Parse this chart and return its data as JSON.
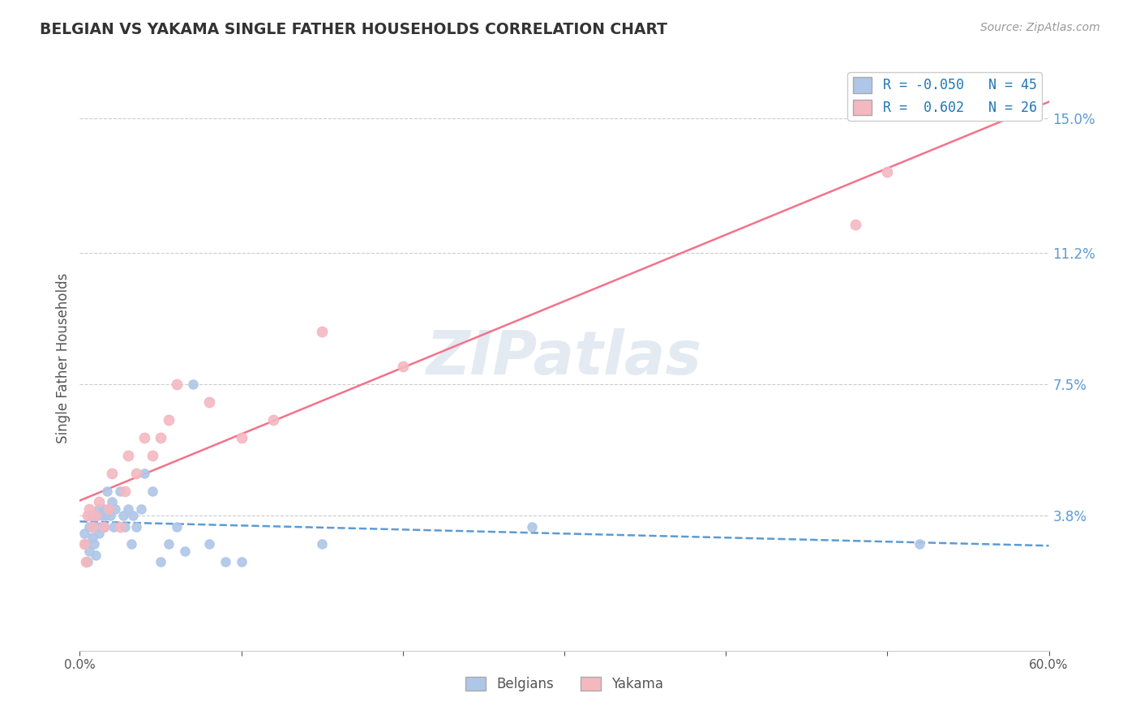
{
  "title": "BELGIAN VS YAKAMA SINGLE FATHER HOUSEHOLDS CORRELATION CHART",
  "source": "Source: ZipAtlas.com",
  "ylabel": "Single Father Households",
  "xlim": [
    0.0,
    0.6
  ],
  "ylim": [
    0.0,
    0.165
  ],
  "xticks": [
    0.0,
    0.1,
    0.2,
    0.3,
    0.4,
    0.5,
    0.6
  ],
  "xticklabels": [
    "0.0%",
    "",
    "",
    "",
    "",
    "",
    "60.0%"
  ],
  "ytick_vals": [
    0.038,
    0.075,
    0.112,
    0.15
  ],
  "ytick_labels": [
    "3.8%",
    "7.5%",
    "11.2%",
    "15.0%"
  ],
  "watermark": "ZIPatlas",
  "legend_r1": "R = -0.050",
  "legend_n1": "N = 45",
  "legend_r2": "R =  0.602",
  "legend_n2": "N = 26",
  "belgian_color": "#aec6e8",
  "yakama_color": "#f4b8c1",
  "belgian_line_color": "#5b9bd5",
  "yakama_line_color": "#f4728a",
  "grid_color": "#cccccc",
  "title_color": "#333333",
  "source_color": "#999999",
  "tick_color": "#555555",
  "legend_text_color": "#1f77b4",
  "belgians_x": [
    0.003,
    0.004,
    0.005,
    0.006,
    0.006,
    0.007,
    0.008,
    0.009,
    0.01,
    0.01,
    0.011,
    0.012,
    0.012,
    0.013,
    0.014,
    0.015,
    0.015,
    0.016,
    0.017,
    0.018,
    0.019,
    0.02,
    0.021,
    0.022,
    0.025,
    0.027,
    0.028,
    0.03,
    0.032,
    0.033,
    0.035,
    0.038,
    0.04,
    0.045,
    0.05,
    0.055,
    0.06,
    0.065,
    0.07,
    0.08,
    0.09,
    0.1,
    0.15,
    0.28,
    0.52
  ],
  "belgians_y": [
    0.033,
    0.03,
    0.025,
    0.028,
    0.035,
    0.038,
    0.032,
    0.03,
    0.027,
    0.035,
    0.038,
    0.04,
    0.033,
    0.035,
    0.038,
    0.04,
    0.035,
    0.038,
    0.045,
    0.04,
    0.038,
    0.042,
    0.035,
    0.04,
    0.045,
    0.038,
    0.035,
    0.04,
    0.03,
    0.038,
    0.035,
    0.04,
    0.05,
    0.045,
    0.025,
    0.03,
    0.035,
    0.028,
    0.075,
    0.03,
    0.025,
    0.025,
    0.03,
    0.035,
    0.03
  ],
  "yakama_x": [
    0.003,
    0.004,
    0.005,
    0.006,
    0.008,
    0.01,
    0.012,
    0.015,
    0.018,
    0.02,
    0.025,
    0.028,
    0.03,
    0.035,
    0.04,
    0.045,
    0.05,
    0.055,
    0.06,
    0.08,
    0.1,
    0.12,
    0.15,
    0.2,
    0.48,
    0.5
  ],
  "yakama_y": [
    0.03,
    0.025,
    0.038,
    0.04,
    0.035,
    0.038,
    0.042,
    0.035,
    0.04,
    0.05,
    0.035,
    0.045,
    0.055,
    0.05,
    0.06,
    0.055,
    0.06,
    0.065,
    0.075,
    0.07,
    0.06,
    0.065,
    0.09,
    0.08,
    0.12,
    0.135
  ]
}
